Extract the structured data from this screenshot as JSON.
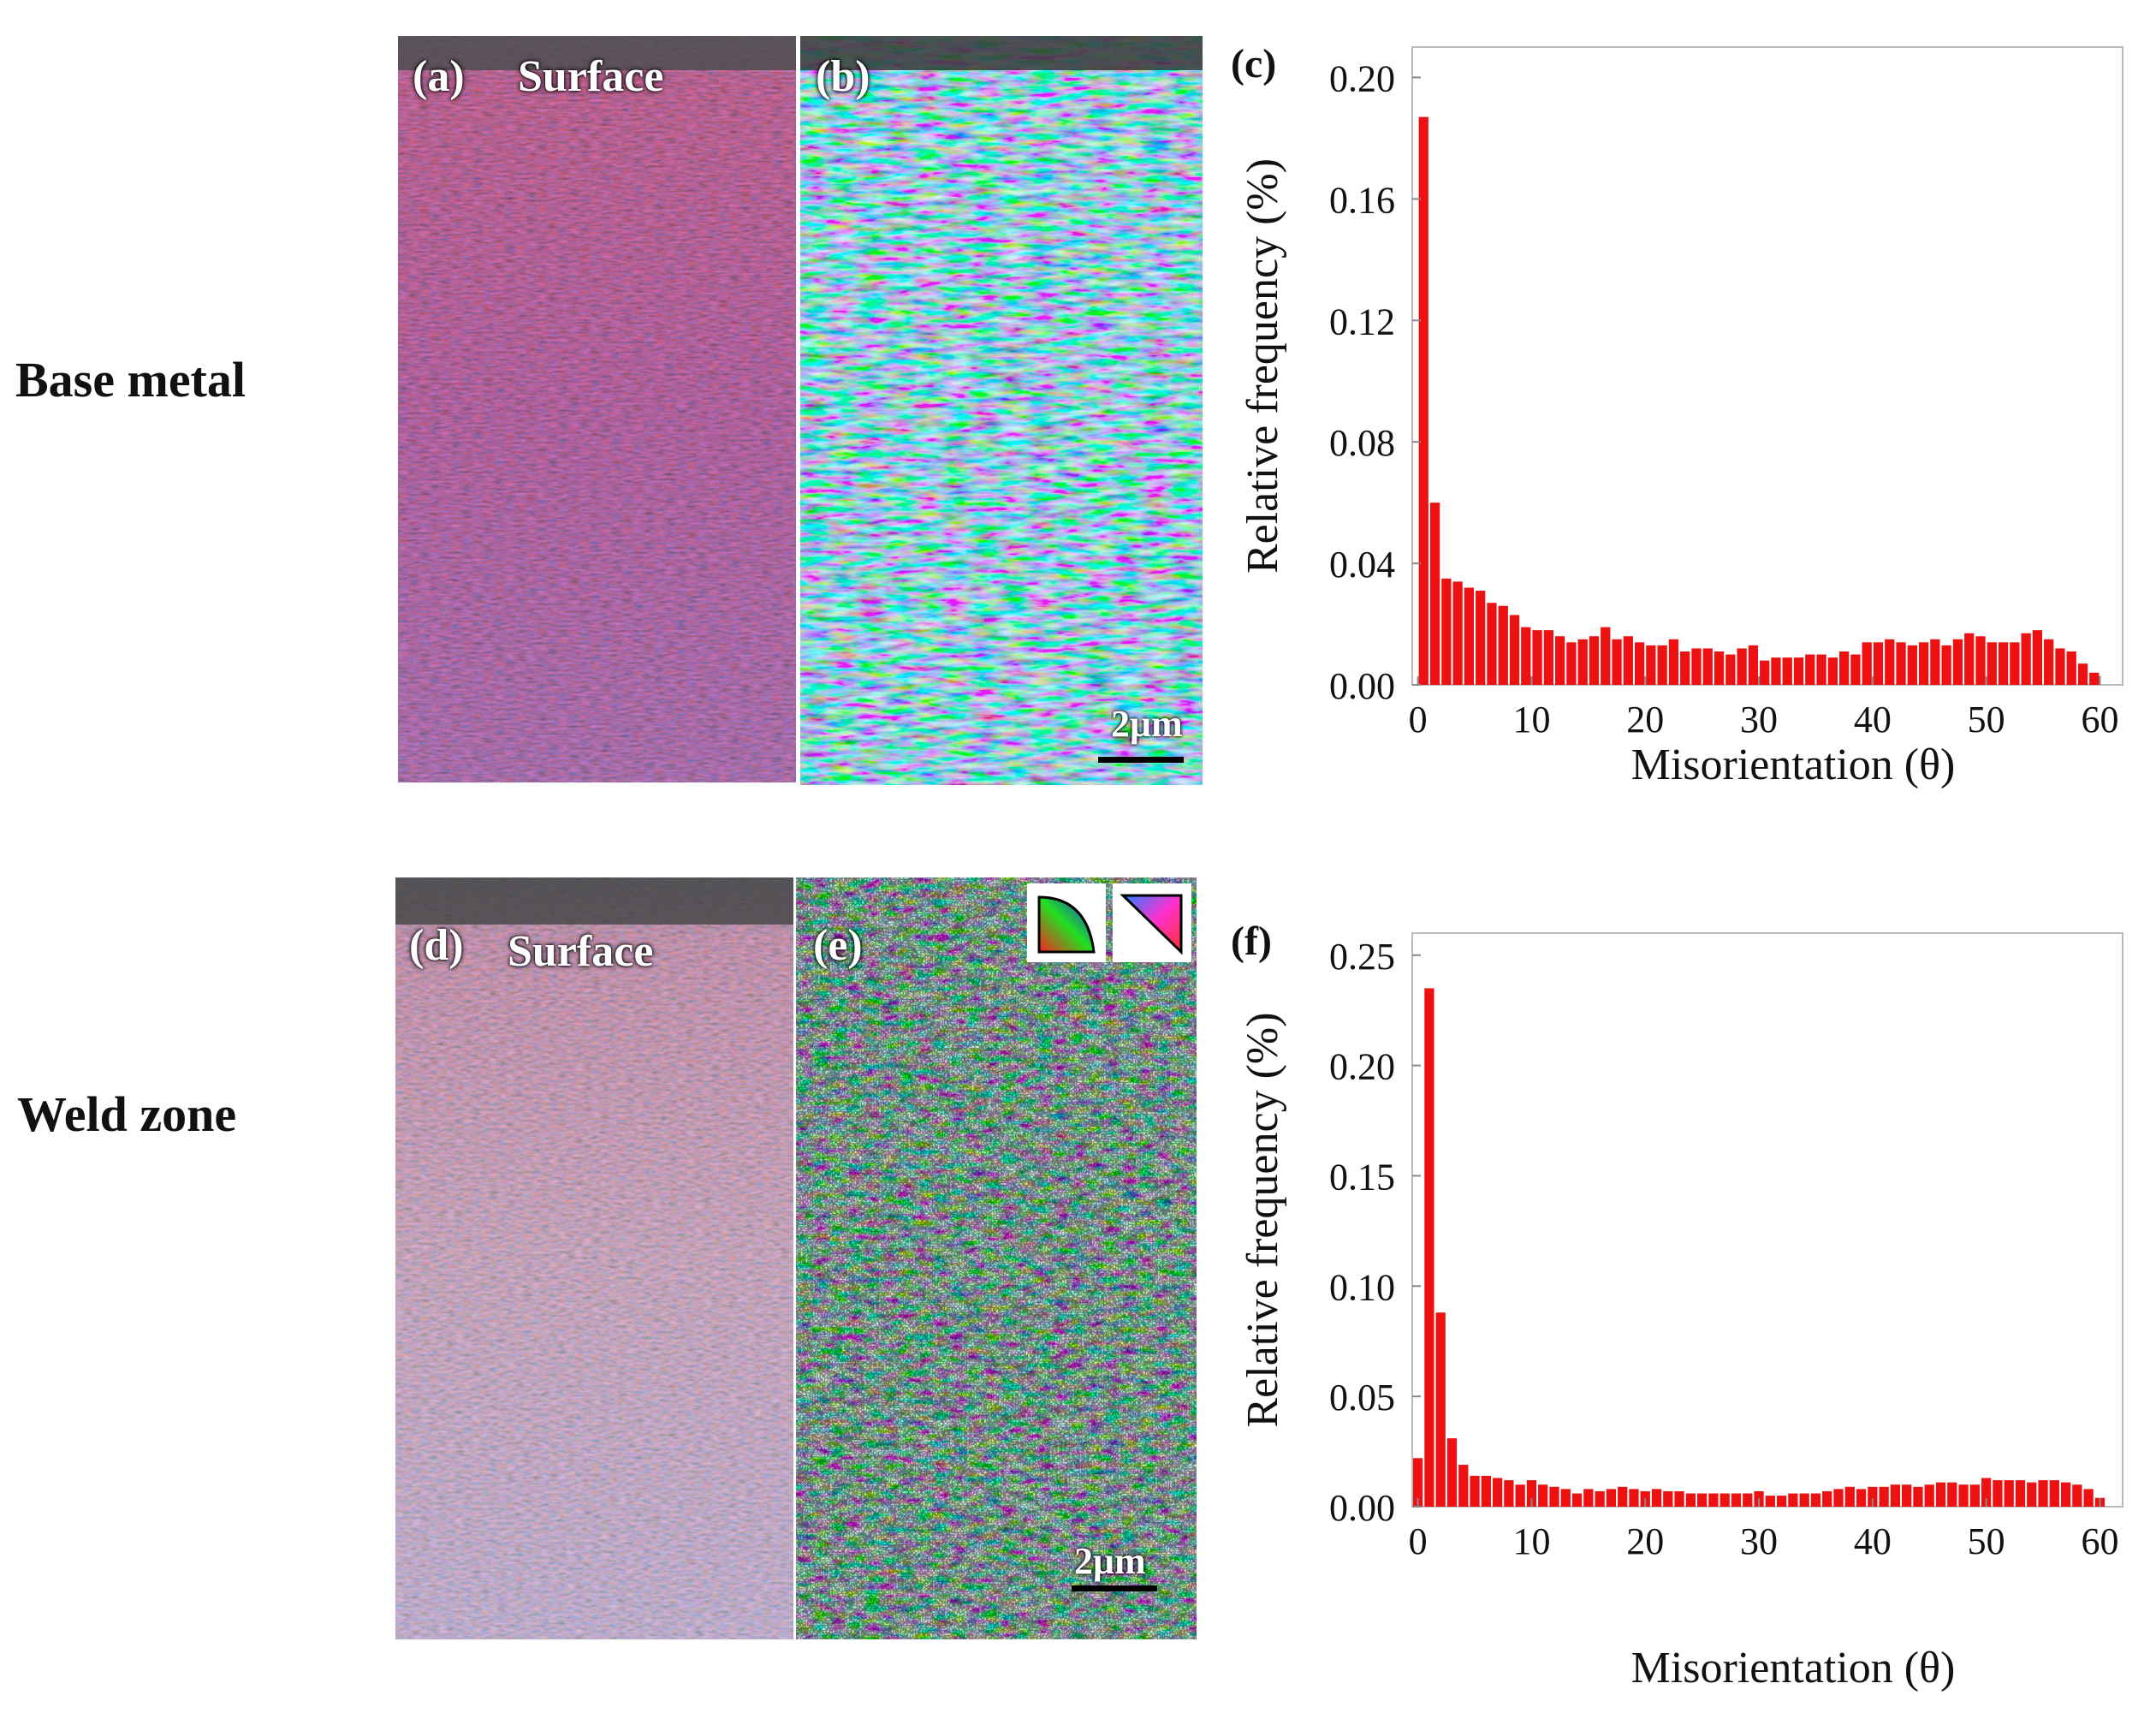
{
  "rows": {
    "base": {
      "label": "Base metal"
    },
    "weld": {
      "label": "Weld zone"
    }
  },
  "panels": {
    "a": {
      "letter": "(a)",
      "surface": "Surface"
    },
    "b": {
      "letter": "(b)",
      "scale": "2μm"
    },
    "c": {
      "letter": "(c)"
    },
    "d": {
      "letter": "(d)",
      "surface": "Surface"
    },
    "e": {
      "letter": "(e)",
      "scale": "2μm"
    },
    "f": {
      "letter": "(f)"
    }
  },
  "chart_data": [
    {
      "id": "c",
      "type": "bar",
      "xlabel": "Misorientation (θ)",
      "ylabel": "Relative frequency (%)",
      "xlim": [
        -0.5,
        62
      ],
      "ylim": [
        0,
        0.21
      ],
      "xticks": [
        "0",
        "10",
        "20",
        "30",
        "40",
        "50",
        "60"
      ],
      "yticks": [
        "0.00",
        "0.04",
        "0.08",
        "0.12",
        "0.16",
        "0.20"
      ],
      "bar_color": "#ee1111",
      "bin_width": 1,
      "x_start": 0.5,
      "values": [
        0.187,
        0.06,
        0.035,
        0.034,
        0.032,
        0.031,
        0.027,
        0.026,
        0.023,
        0.019,
        0.018,
        0.018,
        0.016,
        0.014,
        0.015,
        0.016,
        0.019,
        0.015,
        0.016,
        0.014,
        0.013,
        0.013,
        0.015,
        0.011,
        0.012,
        0.012,
        0.011,
        0.01,
        0.012,
        0.013,
        0.008,
        0.009,
        0.009,
        0.009,
        0.01,
        0.01,
        0.009,
        0.011,
        0.01,
        0.014,
        0.014,
        0.015,
        0.014,
        0.013,
        0.014,
        0.015,
        0.013,
        0.015,
        0.017,
        0.016,
        0.014,
        0.014,
        0.014,
        0.017,
        0.018,
        0.015,
        0.012,
        0.011,
        0.007,
        0.004
      ]
    },
    {
      "id": "f",
      "type": "bar",
      "xlabel": "Misorientation (θ)",
      "ylabel": "Relative frequency (%)",
      "xlim": [
        -0.5,
        62
      ],
      "ylim": [
        0,
        0.26
      ],
      "xticks": [
        "0",
        "10",
        "20",
        "30",
        "40",
        "50",
        "60"
      ],
      "yticks": [
        "0.00",
        "0.05",
        "0.10",
        "0.15",
        "0.20",
        "0.25"
      ],
      "bar_color": "#ee1111",
      "bin_width": 1,
      "x_start": 0.0,
      "values": [
        0.022,
        0.235,
        0.088,
        0.031,
        0.019,
        0.014,
        0.014,
        0.013,
        0.012,
        0.01,
        0.012,
        0.01,
        0.009,
        0.008,
        0.006,
        0.008,
        0.007,
        0.008,
        0.009,
        0.008,
        0.007,
        0.008,
        0.007,
        0.007,
        0.006,
        0.006,
        0.006,
        0.006,
        0.006,
        0.006,
        0.007,
        0.005,
        0.005,
        0.006,
        0.006,
        0.006,
        0.007,
        0.008,
        0.009,
        0.008,
        0.009,
        0.009,
        0.01,
        0.01,
        0.009,
        0.01,
        0.011,
        0.011,
        0.01,
        0.01,
        0.013,
        0.012,
        0.012,
        0.012,
        0.011,
        0.012,
        0.012,
        0.011,
        0.01,
        0.008,
        0.004
      ]
    }
  ]
}
